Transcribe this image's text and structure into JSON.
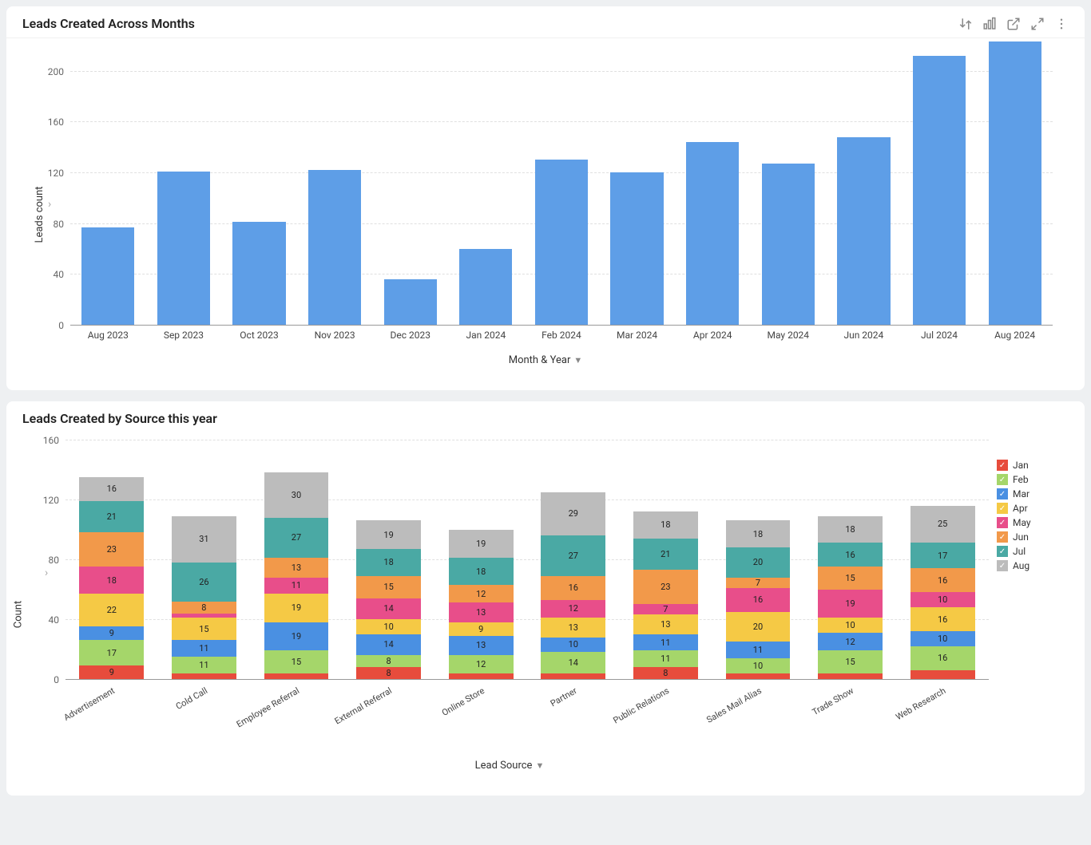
{
  "panel1": {
    "title": "Leads Created Across Months",
    "ylabel": "Leads count",
    "xlabel": "Month & Year",
    "ylim": [
      0,
      220
    ],
    "ytick_step": 40,
    "bar_color": "#5e9ee7",
    "grid_color": "#e0e0e0",
    "axis_color": "#999999",
    "categories": [
      "Aug 2023",
      "Sep 2023",
      "Oct 2023",
      "Nov 2023",
      "Dec 2023",
      "Jan 2024",
      "Feb 2024",
      "Mar 2024",
      "Apr 2024",
      "May 2024",
      "Jun 2024",
      "Jul 2024",
      "Aug 2024"
    ],
    "values": [
      77,
      121,
      81,
      122,
      36,
      60,
      130,
      120,
      144,
      127,
      148,
      212,
      223
    ]
  },
  "panel2": {
    "title": "Leads Created by Source this year",
    "ylabel": "Count",
    "xlabel": "Lead Source",
    "ylim": [
      0,
      160
    ],
    "ytick_step": 40,
    "grid_color": "#e0e0e0",
    "axis_color": "#999999",
    "stack_keys": [
      "Jan",
      "Feb",
      "Mar",
      "Apr",
      "May",
      "Jun",
      "Jul",
      "Aug"
    ],
    "stack_colors": {
      "Jan": "#e74c3c",
      "Feb": "#a5d66a",
      "Mar": "#4a90e2",
      "Apr": "#f5c945",
      "May": "#e84e8a",
      "Jun": "#f2994a",
      "Jul": "#4aa9a4",
      "Aug": "#bcbcbc"
    },
    "categories": [
      "Advertisement",
      "Cold Call",
      "Employee Referral",
      "External Referral",
      "Online Store",
      "Partner",
      "Public Relations",
      "Sales Mail Alias",
      "Trade Show",
      "Web Research"
    ],
    "data": {
      "Advertisement": {
        "Jan": 9,
        "Feb": 17,
        "Mar": 9,
        "Apr": 22,
        "May": 18,
        "Jun": 23,
        "Jul": 21,
        "Aug": 16
      },
      "Cold Call": {
        "Jan": 4,
        "Feb": 11,
        "Mar": 11,
        "Apr": 15,
        "May": 3,
        "Jun": 8,
        "Jul": 26,
        "Aug": 31
      },
      "Employee Referral": {
        "Jan": 4,
        "Feb": 15,
        "Mar": 19,
        "Apr": 19,
        "May": 11,
        "Jun": 13,
        "Jul": 27,
        "Aug": 30
      },
      "External Referral": {
        "Jan": 8,
        "Feb": 8,
        "Mar": 14,
        "Apr": 10,
        "May": 14,
        "Jun": 15,
        "Jul": 18,
        "Aug": 19
      },
      "Online Store": {
        "Jan": 4,
        "Feb": 12,
        "Mar": 13,
        "Apr": 9,
        "May": 13,
        "Jun": 12,
        "Jul": 18,
        "Aug": 19
      },
      "Partner": {
        "Jan": 4,
        "Feb": 14,
        "Mar": 10,
        "Apr": 13,
        "May": 12,
        "Jun": 16,
        "Jul": 27,
        "Aug": 29
      },
      "Public Relations": {
        "Jan": 8,
        "Feb": 11,
        "Mar": 11,
        "Apr": 13,
        "May": 7,
        "Jun": 23,
        "Jul": 21,
        "Aug": 18
      },
      "Sales Mail Alias": {
        "Jan": 4,
        "Feb": 10,
        "Mar": 11,
        "Apr": 20,
        "May": 16,
        "Jun": 7,
        "Jul": 20,
        "Aug": 18
      },
      "Trade Show": {
        "Jan": 4,
        "Feb": 15,
        "Mar": 12,
        "Apr": 10,
        "May": 19,
        "Jun": 15,
        "Jul": 16,
        "Aug": 18
      },
      "Web Research": {
        "Jan": 6,
        "Feb": 16,
        "Mar": 10,
        "Apr": 16,
        "May": 10,
        "Jun": 16,
        "Jul": 17,
        "Aug": 25
      }
    },
    "min_label_value": 7
  },
  "toolbar": {
    "sort_icon": "sort-icon",
    "chart_icon": "chart-type-icon",
    "popout_icon": "popout-icon",
    "expand_icon": "expand-icon",
    "more_icon": "more-icon"
  }
}
